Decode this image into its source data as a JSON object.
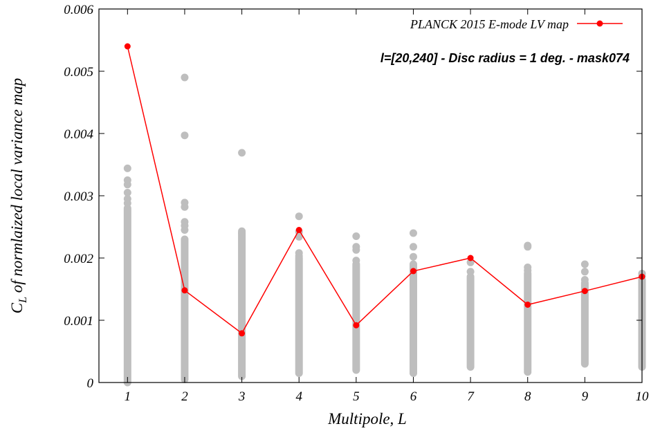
{
  "chart_data": {
    "type": "scatter",
    "xlabel": "Multipole, L",
    "ylabel": {
      "base": "C",
      "sub": "L",
      "rest": " of normlaized local variance map"
    },
    "x_ticks": [
      1,
      2,
      3,
      4,
      5,
      6,
      7,
      8,
      9,
      10
    ],
    "x_tick_labels": [
      "1",
      "2",
      "3",
      "4",
      "5",
      "6",
      "7",
      "8",
      "9",
      "10"
    ],
    "y_ticks": [
      0,
      0.001,
      0.002,
      0.003,
      0.004,
      0.005,
      0.006
    ],
    "y_tick_labels": [
      "0",
      "0.001",
      "0.002",
      "0.003",
      "0.004",
      "0.005",
      "0.006"
    ],
    "xlim": [
      0.5,
      10
    ],
    "ylim": [
      0,
      0.006
    ],
    "grid": false,
    "legend_position": "top-right",
    "annotation": "l=[20,240] - Disc radius = 1 deg. - mask074",
    "series": [
      {
        "name": "PLANCK 2015 E-mode LV map",
        "style": "line+points",
        "color": "#ff0000",
        "x": [
          1,
          2,
          3,
          4,
          5,
          6,
          7,
          8,
          9,
          10
        ],
        "y": [
          0.0054,
          0.00148,
          0.00079,
          0.00245,
          0.00092,
          0.00179,
          0.002,
          0.00125,
          0.00147,
          0.0017
        ]
      },
      {
        "style": "points",
        "color": "#bebebe",
        "dense_ranges": [
          {
            "x": 1,
            "min": 0.0,
            "max": 0.0028
          },
          {
            "x": 2,
            "min": 5e-05,
            "max": 0.0023
          },
          {
            "x": 3,
            "min": 0.0001,
            "max": 0.0024
          },
          {
            "x": 4,
            "min": 0.00015,
            "max": 0.002
          },
          {
            "x": 5,
            "min": 0.0002,
            "max": 0.0019
          },
          {
            "x": 6,
            "min": 0.00015,
            "max": 0.0019
          },
          {
            "x": 7,
            "min": 0.00025,
            "max": 0.0017
          },
          {
            "x": 8,
            "min": 0.0002,
            "max": 0.00175
          },
          {
            "x": 9,
            "min": 0.0003,
            "max": 0.0016
          },
          {
            "x": 10,
            "min": 0.00025,
            "max": 0.00165
          }
        ],
        "outliers": [
          {
            "x": 1,
            "y": [
              0.00344,
              0.00325,
              0.00318,
              0.00305,
              0.00295,
              0.00288
            ]
          },
          {
            "x": 2,
            "y": [
              0.0049,
              0.00397,
              0.00289,
              0.00282,
              0.00258,
              0.00252,
              0.00245
            ]
          },
          {
            "x": 3,
            "y": [
              0.00369,
              0.00243,
              0.0024
            ]
          },
          {
            "x": 4,
            "y": [
              0.00267,
              0.00242,
              0.00234,
              0.00208,
              0.00203
            ]
          },
          {
            "x": 5,
            "y": [
              0.00235,
              0.00218,
              0.00213,
              0.00196
            ]
          },
          {
            "x": 6,
            "y": [
              0.0024,
              0.00218,
              0.00202
            ]
          },
          {
            "x": 7,
            "y": [
              0.00193,
              0.00178
            ]
          },
          {
            "x": 8,
            "y": [
              0.0022,
              0.00218,
              0.00185,
              0.0018,
              0.00017
            ]
          },
          {
            "x": 9,
            "y": [
              0.0019,
              0.00178,
              0.00165
            ]
          },
          {
            "x": 10,
            "y": [
              0.00175,
              0.00171
            ]
          }
        ]
      }
    ]
  }
}
